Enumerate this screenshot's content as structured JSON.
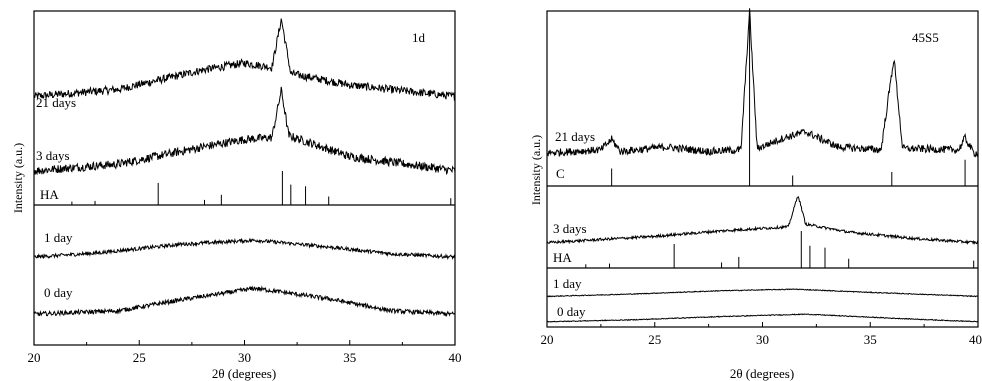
{
  "chart_data": [
    {
      "type": "line",
      "panel_label": "1d",
      "xlabel": "2θ (degrees)",
      "ylabel": "Intensity (a.u.)",
      "xlim": [
        20,
        40
      ],
      "xticks": [
        20,
        25,
        30,
        35,
        40
      ],
      "grid": false,
      "series": [
        {
          "name": "21 days",
          "points": [
            [
              20,
              0.12
            ],
            [
              24,
              0.2
            ],
            [
              28,
              0.42
            ],
            [
              30,
              0.5
            ],
            [
              31.3,
              0.45
            ],
            [
              31.75,
              1.0
            ],
            [
              32.2,
              0.38
            ],
            [
              35,
              0.25
            ],
            [
              40,
              0.12
            ]
          ]
        },
        {
          "name": "3 days",
          "points": [
            [
              20,
              0.15
            ],
            [
              24,
              0.22
            ],
            [
              28,
              0.4
            ],
            [
              30,
              0.48
            ],
            [
              31.3,
              0.5
            ],
            [
              31.75,
              1.0
            ],
            [
              32.1,
              0.52
            ],
            [
              35,
              0.3
            ],
            [
              40,
              0.15
            ]
          ]
        },
        {
          "name": "1 day",
          "points": [
            [
              20,
              0.1
            ],
            [
              23,
              0.2
            ],
            [
              27,
              0.42
            ],
            [
              30.5,
              0.52
            ],
            [
              34,
              0.35
            ],
            [
              37,
              0.18
            ],
            [
              40,
              0.1
            ]
          ]
        },
        {
          "name": "0 day",
          "points": [
            [
              20,
              0.08
            ],
            [
              24,
              0.15
            ],
            [
              27,
              0.38
            ],
            [
              30.5,
              0.62
            ],
            [
              34,
              0.4
            ],
            [
              37,
              0.15
            ],
            [
              40,
              0.08
            ]
          ]
        }
      ],
      "reference": {
        "name": "HA",
        "peaks": [
          [
            21.8,
            0.1
          ],
          [
            22.9,
            0.12
          ],
          [
            25.9,
            0.65
          ],
          [
            28.1,
            0.15
          ],
          [
            28.9,
            0.3
          ],
          [
            31.8,
            1.0
          ],
          [
            32.2,
            0.6
          ],
          [
            32.9,
            0.55
          ],
          [
            34.0,
            0.25
          ],
          [
            39.8,
            0.2
          ]
        ]
      }
    },
    {
      "type": "line",
      "panel_label": "45S5",
      "xlabel": "2θ (degrees)",
      "ylabel": "Intensity (a.u.)",
      "xlim": [
        20,
        40
      ],
      "xticks": [
        20,
        25,
        30,
        35,
        40
      ],
      "xtick_labels": [
        "20",
        "25",
        "30",
        "35",
        "40"
      ],
      "grid": false,
      "series": [
        {
          "name": "21 days",
          "points": [
            [
              20,
              0.06
            ],
            [
              22.5,
              0.08
            ],
            [
              23.0,
              0.15
            ],
            [
              23.4,
              0.07
            ],
            [
              25.5,
              0.1
            ],
            [
              27.5,
              0.07
            ],
            [
              29.0,
              0.08
            ],
            [
              29.4,
              1.0
            ],
            [
              29.75,
              0.09
            ],
            [
              31,
              0.16
            ],
            [
              32,
              0.2
            ],
            [
              33.5,
              0.1
            ],
            [
              35.5,
              0.08
            ],
            [
              36.1,
              0.69
            ],
            [
              36.5,
              0.09
            ],
            [
              39.1,
              0.08
            ],
            [
              39.4,
              0.16
            ],
            [
              39.8,
              0.06
            ],
            [
              40,
              0.06
            ]
          ]
        },
        {
          "name": "3 days",
          "points": [
            [
              20,
              0.1
            ],
            [
              25,
              0.22
            ],
            [
              28,
              0.32
            ],
            [
              31.2,
              0.4
            ],
            [
              31.65,
              1.0
            ],
            [
              32.0,
              0.45
            ],
            [
              34,
              0.3
            ],
            [
              37,
              0.18
            ],
            [
              40,
              0.1
            ]
          ]
        },
        {
          "name": "1 day",
          "points": [
            [
              20,
              0.1
            ],
            [
              24,
              0.25
            ],
            [
              28,
              0.45
            ],
            [
              31.5,
              0.55
            ],
            [
              35,
              0.35
            ],
            [
              40,
              0.1
            ]
          ]
        },
        {
          "name": "0 day",
          "points": [
            [
              20,
              0.08
            ],
            [
              24,
              0.2
            ],
            [
              28,
              0.4
            ],
            [
              32,
              0.55
            ],
            [
              36,
              0.3
            ],
            [
              40,
              0.08
            ]
          ]
        }
      ],
      "reference_c": {
        "name": "C",
        "peaks": [
          [
            23.0,
            0.1
          ],
          [
            29.4,
            1.0
          ],
          [
            31.4,
            0.06
          ],
          [
            36.0,
            0.08
          ],
          [
            39.4,
            0.15
          ]
        ]
      },
      "reference": {
        "name": "HA",
        "peaks": [
          [
            21.8,
            0.1
          ],
          [
            22.9,
            0.12
          ],
          [
            25.9,
            0.65
          ],
          [
            28.1,
            0.15
          ],
          [
            28.9,
            0.3
          ],
          [
            31.8,
            1.0
          ],
          [
            32.2,
            0.6
          ],
          [
            32.9,
            0.55
          ],
          [
            34.0,
            0.25
          ],
          [
            39.8,
            0.2
          ]
        ]
      }
    }
  ]
}
